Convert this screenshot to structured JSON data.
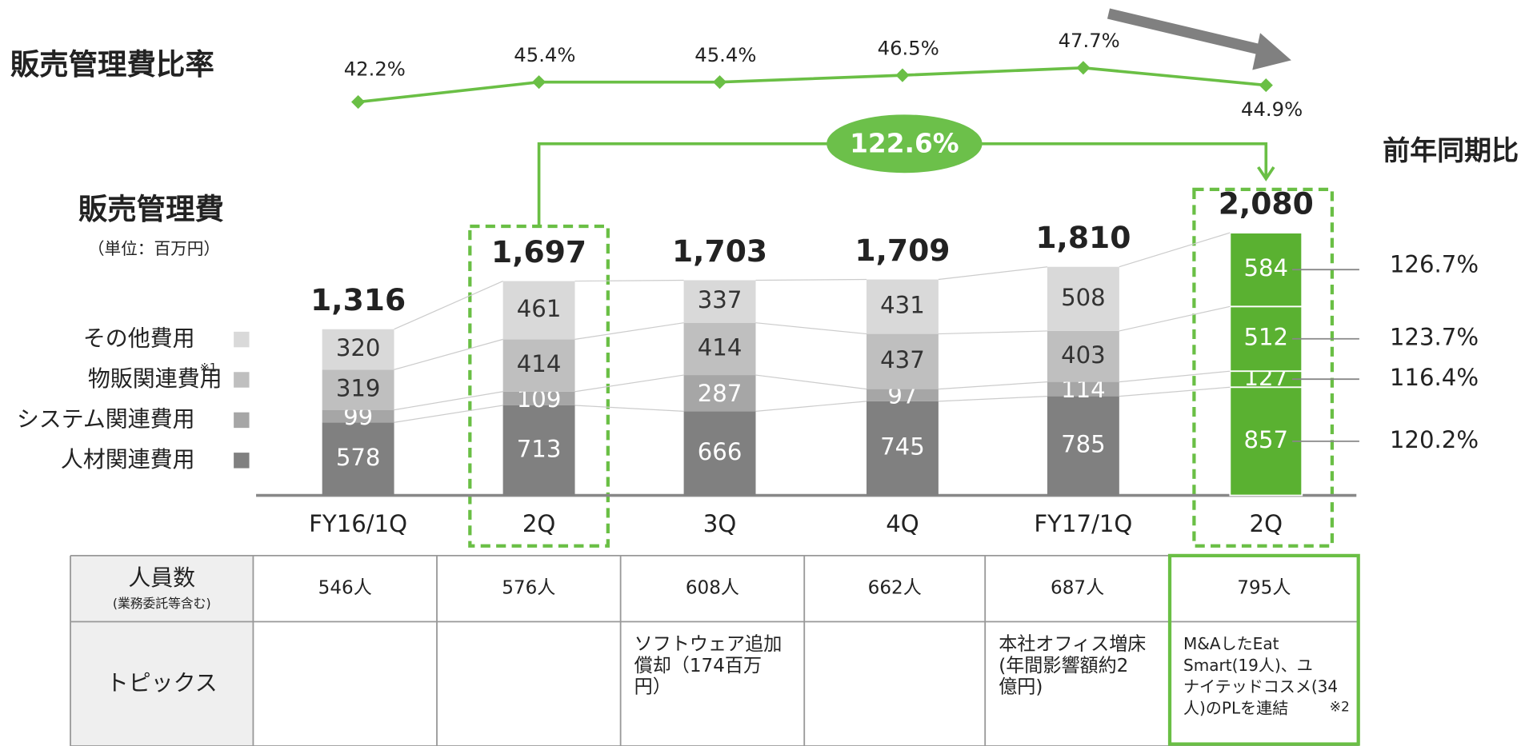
{
  "chart_data": {
    "type": "bar",
    "stacked": true,
    "title": "販売管理費",
    "subtitle": "（単位：百万円）",
    "categories": [
      "FY16/1Q",
      "2Q",
      "3Q",
      "4Q",
      "FY17/1Q",
      "2Q"
    ],
    "series": [
      {
        "name": "人材関連費用",
        "color": "#808080",
        "values": [
          578,
          713,
          666,
          745,
          785,
          857
        ],
        "yoy": 120.2,
        "yoy_label": "120.2%"
      },
      {
        "name": "システム関連費用",
        "color": "#a6a6a6",
        "values": [
          99,
          109,
          287,
          97,
          114,
          127
        ],
        "yoy": 116.4,
        "yoy_label": "116.4%"
      },
      {
        "name": "物販関連費用",
        "note": "※1",
        "color": "#bfbfbf",
        "values": [
          319,
          414,
          414,
          437,
          403,
          512
        ],
        "yoy": 123.7,
        "yoy_label": "123.7%"
      },
      {
        "name": "その他費用",
        "color": "#d9d9d9",
        "values": [
          320,
          461,
          337,
          431,
          508,
          584
        ],
        "yoy": 126.7,
        "yoy_label": "126.7%"
      }
    ],
    "totals": [
      1316,
      1697,
      1703,
      1709,
      1810,
      2080
    ],
    "totals_labels": [
      "1,316",
      "1,697",
      "1,703",
      "1,709",
      "1,810",
      "2,080"
    ],
    "highlight_color": "#5ab131",
    "yoy_title": "前年同期比",
    "yoy_total": 122.6,
    "yoy_total_label": "122.6%",
    "ratio": {
      "title": "販売管理費比率",
      "color": "#6abf45",
      "values": [
        42.2,
        45.4,
        45.4,
        46.5,
        47.7,
        44.9
      ],
      "value_labels": [
        "42.2%",
        "45.4%",
        "45.4%",
        "46.5%",
        "47.7%",
        "44.9%"
      ]
    }
  },
  "table": {
    "rows": [
      {
        "label": "人員数",
        "sublabel": "(業務委託等含む)",
        "cells": [
          [
            "546人"
          ],
          [
            "576人"
          ],
          [
            "608人"
          ],
          [
            "662人"
          ],
          [
            "687人"
          ],
          [
            "795人"
          ]
        ]
      },
      {
        "label": "トピックス",
        "note": "※2",
        "cells": [
          null,
          null,
          [
            "ソフトウェア追加",
            "償却（174百万",
            "円）"
          ],
          null,
          [
            "本社オフィス増床",
            "(年間影響額約2",
            "億円)"
          ],
          [
            "M&AしたEat",
            "Smart(19人)、ユ",
            "ナイテッドコスメ(34",
            "人)のPLを連結"
          ]
        ]
      }
    ]
  }
}
